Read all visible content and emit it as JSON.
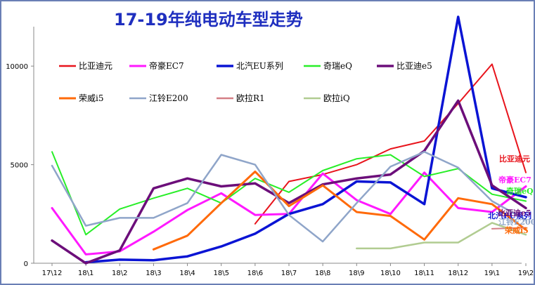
{
  "chart_data": {
    "type": "line",
    "title": "17-19年纯电动车型走势",
    "xlabel": "",
    "ylabel": "",
    "categories": [
      "17\\12",
      "18\\1",
      "18\\2",
      "18\\3",
      "18\\4",
      "18\\5",
      "18\\6",
      "18\\7",
      "18\\8",
      "18\\9",
      "18\\10",
      "18\\11",
      "18\\12",
      "19\\1",
      "19\\2"
    ],
    "ylim": [
      0,
      12000
    ],
    "yticks": [
      0,
      5000,
      10000
    ],
    "grid": false,
    "legend_position": "top-left",
    "series": [
      {
        "name": "比亚迪元",
        "color": "#e8141c",
        "width": 2,
        "end_label": "比亚迪元",
        "values": [
          null,
          null,
          null,
          null,
          null,
          null,
          2000,
          4150,
          4500,
          5000,
          5800,
          6200,
          8100,
          10100,
          4600
        ]
      },
      {
        "name": "帝豪EC7",
        "color": "#ff19ff",
        "width": 3,
        "end_label": "帝豪EC7",
        "values": [
          2800,
          450,
          600,
          1600,
          2700,
          3550,
          2450,
          2500,
          4550,
          3200,
          2500,
          4600,
          2800,
          2600,
          3900
        ]
      },
      {
        "name": "北汽EU系列",
        "color": "#0a14d4",
        "width": 3.5,
        "end_label": "北汽EU系列",
        "values": [
          null,
          50,
          180,
          150,
          350,
          850,
          1500,
          2500,
          3000,
          4150,
          4100,
          3000,
          12500,
          3800,
          3350
        ]
      },
      {
        "name": "奇瑞eQ",
        "color": "#28ee28",
        "width": 2,
        "end_label": "奇瑞eQ",
        "values": [
          5650,
          1450,
          2750,
          3300,
          3800,
          3050,
          4300,
          3600,
          4700,
          5300,
          5500,
          4400,
          4800,
          3500,
          3150
        ]
      },
      {
        "name": "比亚迪e5",
        "color": "#6c0e7a",
        "width": 3.5,
        "end_label": "比亚迪e5",
        "values": [
          1150,
          0,
          650,
          3800,
          4300,
          3900,
          4050,
          3050,
          4000,
          4300,
          4500,
          5700,
          8250,
          3950,
          2800
        ]
      },
      {
        "name": "荣威i5",
        "color": "#ff6a0a",
        "width": 3,
        "end_label": "荣威i5",
        "values": [
          null,
          null,
          null,
          700,
          1400,
          3050,
          4650,
          2900,
          3950,
          2600,
          2400,
          1200,
          3300,
          3000,
          1700
        ]
      },
      {
        "name": "江铃E200",
        "color": "#8fa5c9",
        "width": 2.5,
        "end_label": "江铃E200",
        "values": [
          4950,
          1900,
          2300,
          2300,
          3050,
          5500,
          5000,
          2450,
          1100,
          3050,
          4900,
          5650,
          4850,
          3150,
          2200
        ]
      },
      {
        "name": "欧拉R1",
        "color": "#d47f86",
        "width": 2,
        "end_label": "",
        "values": [
          null,
          null,
          null,
          null,
          null,
          null,
          null,
          null,
          null,
          null,
          null,
          null,
          null,
          1750,
          1800
        ]
      },
      {
        "name": "欧拉iQ",
        "color": "#b1cc91",
        "width": 2.5,
        "end_label": "",
        "values": [
          null,
          null,
          null,
          null,
          null,
          null,
          null,
          null,
          null,
          750,
          750,
          1050,
          1050,
          2050,
          1450
        ]
      }
    ]
  }
}
